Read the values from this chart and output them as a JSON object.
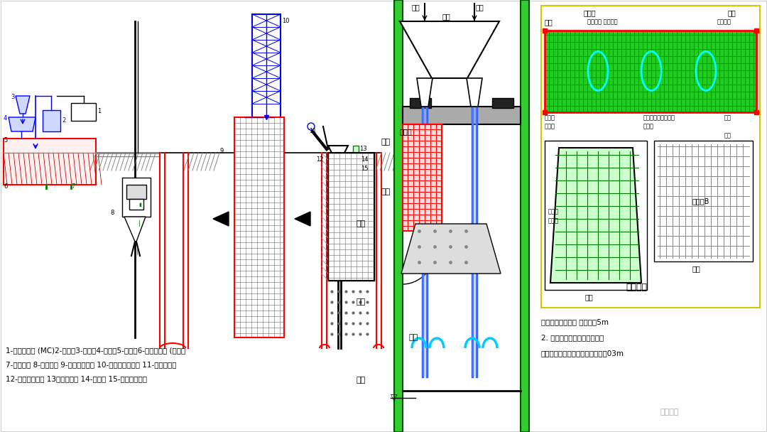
{
  "bg_color": "#ffffff",
  "bottom_text": [
    "1-投入膨润土 (MC)2-搅拌桶3-旋挖器4-振动筛5-排泥槽6-回收系统池 (待处理",
    "7-再生液池 8-液压抓斗 9-护壁泥浆液位 10-吊钢笼专用工具 11-浇灌混凝土",
    "12-钢笼搁置吊点 13混凝土导管 14-接头管 15-专用规路设备"
  ],
  "right_notes": [
    "说明：导管距般边 距墙大于5m",
    "2. 钢笼搁置时应选可靠保横址",
    "面须悬挂！！其新座层深不得超过03m"
  ]
}
